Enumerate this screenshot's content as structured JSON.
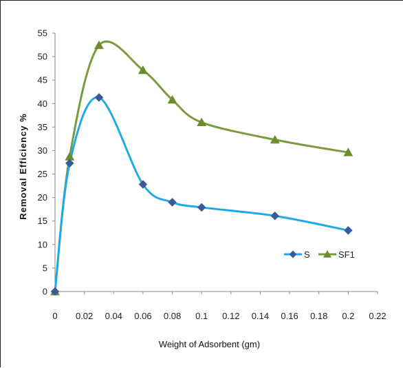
{
  "chart_data": {
    "type": "line",
    "title": "",
    "xlabel": "Weight of Adsorbent (gm)",
    "ylabel": "Removal  Efficiency  %",
    "xlim": [
      0,
      0.22
    ],
    "ylim": [
      0,
      55
    ],
    "x_ticks": [
      "0",
      "0.02",
      "0.04",
      "0.06",
      "0.08",
      "0.1",
      "0.12",
      "0.14",
      "0.16",
      "0.18",
      "0.2",
      "0.22"
    ],
    "y_ticks": [
      "0",
      "5",
      "10",
      "15",
      "20",
      "25",
      "30",
      "35",
      "40",
      "45",
      "50",
      "55"
    ],
    "grid": false,
    "smooth": true,
    "legend_position": "bottom-right",
    "series": [
      {
        "name": "S",
        "marker": "diamond",
        "color": "#1FA9E8",
        "marker_color": "#3A5A98",
        "x": [
          0,
          0.01,
          0.03,
          0.06,
          0.08,
          0.1,
          0.15,
          0.2
        ],
        "y": [
          0,
          27.3,
          41.3,
          22.8,
          19.0,
          17.9,
          16.1,
          13.0
        ]
      },
      {
        "name": "SF1",
        "marker": "triangle",
        "color": "#7A9A3E",
        "marker_color": "#6A8E2E",
        "x": [
          0,
          0.01,
          0.03,
          0.06,
          0.08,
          0.1,
          0.15,
          0.2
        ],
        "y": [
          0,
          28.7,
          52.4,
          47.1,
          40.8,
          36.0,
          32.3,
          29.6
        ]
      }
    ]
  }
}
